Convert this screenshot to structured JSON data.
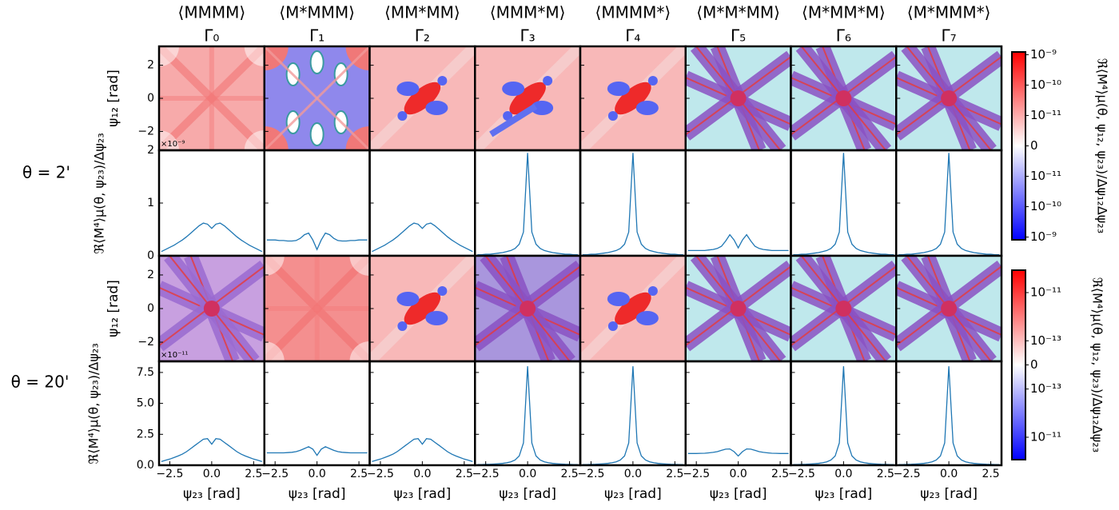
{
  "columns": [
    {
      "label": "⟨MMMM⟩",
      "gamma": "Γ₀"
    },
    {
      "label": "⟨M*MMM⟩",
      "gamma": "Γ₁"
    },
    {
      "label": "⟨MM*MM⟩",
      "gamma": "Γ₂"
    },
    {
      "label": "⟨MMM*M⟩",
      "gamma": "Γ₃"
    },
    {
      "label": "⟨MMMM*⟩",
      "gamma": "Γ₄"
    },
    {
      "label": "⟨M*M*MM⟩",
      "gamma": "Γ₅"
    },
    {
      "label": "⟨M*MM*M⟩",
      "gamma": "Γ₆"
    },
    {
      "label": "⟨M*MMM*⟩",
      "gamma": "Γ₇"
    }
  ],
  "chart_data": [
    {
      "type": "heatmap",
      "row_label": "θ = 2'",
      "ylabel": "ψ₁₂ [rad]",
      "ylim": [
        3.14,
        -3.14
      ],
      "yticks": [
        {
          "value": -2,
          "label": "−2"
        },
        0,
        2
      ],
      "multiplier": "×10⁻⁹",
      "colorbar": {
        "label": "ℜ⟨M⁴⟩μ(θ, ψ₁₂, ψ₂₃)/Δψ₁₂Δψ₂₃",
        "scale": "symlog",
        "linthresh": 1e-11,
        "clim": [
          -1.23e-09,
          1.23e-09
        ],
        "colors": [
          "#0000ff",
          "#ffffff",
          "#ff0000"
        ],
        "ticks": [
          {
            "value": 1e-09,
            "label": "10⁻⁹"
          },
          {
            "value": 1e-10,
            "label": "10⁻¹⁰"
          },
          {
            "value": 1e-11,
            "label": "10⁻¹¹"
          },
          0,
          {
            "value": -1e-11,
            "label": "10⁻¹¹"
          },
          {
            "value": -1e-10,
            "label": "10⁻¹⁰"
          },
          {
            "value": -1e-09,
            "label": "10⁻⁹"
          }
        ]
      }
    },
    {
      "type": "line",
      "ylabel": "ℜ⟨M⁴⟩μ(θ, ψ₂₃)/Δψ₂₃",
      "xlim": [
        -3.14,
        3.14
      ],
      "ylim": [
        0,
        2
      ],
      "yticks": [
        0,
        1,
        2
      ],
      "x": [
        -3,
        -2.75,
        -2.5,
        -2.25,
        -2,
        -1.75,
        -1.5,
        -1.25,
        -1,
        -0.75,
        -0.5,
        -0.25,
        0,
        0.25,
        0.5,
        0.75,
        1,
        1.25,
        1.5,
        1.75,
        2,
        2.25,
        2.5,
        2.75,
        3
      ],
      "series": [
        {
          "color": "#1f77b4",
          "values": [
            0.08,
            0.12,
            0.16,
            0.2,
            0.25,
            0.3,
            0.36,
            0.43,
            0.5,
            0.57,
            0.62,
            0.6,
            0.52,
            0.6,
            0.62,
            0.57,
            0.5,
            0.43,
            0.36,
            0.3,
            0.25,
            0.2,
            0.16,
            0.12,
            0.08
          ]
        },
        {
          "color": "#1f77b4",
          "values": [
            0.3,
            0.3,
            0.3,
            0.29,
            0.29,
            0.28,
            0.28,
            0.29,
            0.33,
            0.4,
            0.43,
            0.3,
            0.12,
            0.3,
            0.43,
            0.4,
            0.33,
            0.29,
            0.28,
            0.28,
            0.29,
            0.29,
            0.3,
            0.3,
            0.3
          ]
        },
        {
          "color": "#1f77b4",
          "values": [
            0.08,
            0.12,
            0.16,
            0.2,
            0.25,
            0.3,
            0.36,
            0.43,
            0.5,
            0.57,
            0.62,
            0.6,
            0.52,
            0.6,
            0.62,
            0.57,
            0.5,
            0.43,
            0.36,
            0.3,
            0.25,
            0.2,
            0.16,
            0.12,
            0.08
          ]
        },
        {
          "color": "#1f77b4",
          "values": [
            0.02,
            0.02,
            0.03,
            0.03,
            0.04,
            0.05,
            0.06,
            0.08,
            0.1,
            0.14,
            0.22,
            0.45,
            1.95,
            0.45,
            0.22,
            0.14,
            0.1,
            0.08,
            0.06,
            0.05,
            0.04,
            0.03,
            0.03,
            0.02,
            0.02
          ]
        },
        {
          "color": "#1f77b4",
          "values": [
            0.02,
            0.02,
            0.03,
            0.03,
            0.04,
            0.05,
            0.06,
            0.08,
            0.1,
            0.14,
            0.22,
            0.45,
            1.95,
            0.45,
            0.22,
            0.14,
            0.1,
            0.08,
            0.06,
            0.05,
            0.04,
            0.03,
            0.03,
            0.02,
            0.02
          ]
        },
        {
          "color": "#1f77b4",
          "values": [
            0.1,
            0.1,
            0.1,
            0.1,
            0.1,
            0.11,
            0.12,
            0.14,
            0.18,
            0.28,
            0.4,
            0.3,
            0.15,
            0.3,
            0.4,
            0.28,
            0.18,
            0.14,
            0.12,
            0.11,
            0.1,
            0.1,
            0.1,
            0.1,
            0.1
          ]
        },
        {
          "color": "#1f77b4",
          "values": [
            0.02,
            0.02,
            0.03,
            0.03,
            0.04,
            0.05,
            0.06,
            0.08,
            0.1,
            0.14,
            0.22,
            0.45,
            1.95,
            0.45,
            0.22,
            0.14,
            0.1,
            0.08,
            0.06,
            0.05,
            0.04,
            0.03,
            0.03,
            0.02,
            0.02
          ]
        },
        {
          "color": "#1f77b4",
          "values": [
            0.02,
            0.02,
            0.03,
            0.03,
            0.04,
            0.05,
            0.06,
            0.08,
            0.1,
            0.14,
            0.22,
            0.45,
            1.95,
            0.45,
            0.22,
            0.14,
            0.1,
            0.08,
            0.06,
            0.05,
            0.04,
            0.03,
            0.03,
            0.02,
            0.02
          ]
        }
      ]
    },
    {
      "type": "heatmap",
      "row_label": "θ = 20'",
      "ylabel": "ψ₁₂ [rad]",
      "ylim": [
        3.14,
        -3.14
      ],
      "yticks": [
        {
          "value": -2,
          "label": "−2"
        },
        0,
        2
      ],
      "multiplier": "×10⁻¹¹",
      "colorbar": {
        "label": "ℜ⟨M⁴⟩μ(θ, ψ₁₂, ψ₂₃)/Δψ₁₂Δψ₂₃",
        "scale": "symlog",
        "linthresh": 1e-13,
        "clim": [
          -8.5e-11,
          8.5e-11
        ],
        "colors": [
          "#0000ff",
          "#ffffff",
          "#ff0000"
        ],
        "ticks": [
          {
            "value": 1e-11,
            "label": "10⁻¹¹"
          },
          {
            "value": 1e-13,
            "label": "10⁻¹³"
          },
          0,
          {
            "value": -1e-13,
            "label": "10⁻¹³"
          },
          {
            "value": -1e-11,
            "label": "10⁻¹¹"
          }
        ]
      }
    },
    {
      "type": "line",
      "ylabel": "ℜ⟨M⁴⟩μ(θ, ψ₂₃)/Δψ₂₃",
      "xlabel": "ψ₂₃ [rad]",
      "xlim": [
        -3.14,
        3.14
      ],
      "xticks": [
        {
          "value": -2.5,
          "label": "−2.5"
        },
        {
          "value": 0,
          "label": "0.0"
        },
        2.5
      ],
      "ylim": [
        0,
        8.4
      ],
      "yticks": [
        {
          "value": 0,
          "label": "0.0"
        },
        2.5,
        {
          "value": 5,
          "label": "5.0"
        },
        7.5
      ],
      "x": [
        -3,
        -2.75,
        -2.5,
        -2.25,
        -2,
        -1.75,
        -1.5,
        -1.25,
        -1,
        -0.75,
        -0.5,
        -0.25,
        0,
        0.25,
        0.5,
        0.75,
        1,
        1.25,
        1.5,
        1.75,
        2,
        2.25,
        2.5,
        2.75,
        3
      ],
      "series": [
        {
          "color": "#1f77b4",
          "values": [
            0.3,
            0.4,
            0.5,
            0.62,
            0.75,
            0.9,
            1.1,
            1.35,
            1.6,
            1.85,
            2.1,
            2.15,
            1.7,
            2.15,
            2.1,
            1.85,
            1.6,
            1.35,
            1.1,
            0.9,
            0.75,
            0.62,
            0.5,
            0.4,
            0.3
          ]
        },
        {
          "color": "#1f77b4",
          "values": [
            1.0,
            1.0,
            1.0,
            1.0,
            1.0,
            1.02,
            1.05,
            1.1,
            1.2,
            1.35,
            1.5,
            1.3,
            0.8,
            1.3,
            1.5,
            1.35,
            1.2,
            1.1,
            1.05,
            1.02,
            1.0,
            1.0,
            1.0,
            1.0,
            1.0
          ]
        },
        {
          "color": "#1f77b4",
          "values": [
            0.3,
            0.4,
            0.5,
            0.62,
            0.75,
            0.9,
            1.1,
            1.35,
            1.6,
            1.85,
            2.1,
            2.15,
            1.7,
            2.15,
            2.1,
            1.85,
            1.6,
            1.35,
            1.1,
            0.9,
            0.75,
            0.62,
            0.5,
            0.4,
            0.3
          ]
        },
        {
          "color": "#1f77b4",
          "values": [
            0.05,
            0.06,
            0.07,
            0.08,
            0.1,
            0.12,
            0.15,
            0.2,
            0.28,
            0.42,
            0.75,
            1.8,
            8.0,
            1.8,
            0.75,
            0.42,
            0.28,
            0.2,
            0.15,
            0.12,
            0.1,
            0.08,
            0.07,
            0.06,
            0.05
          ]
        },
        {
          "color": "#1f77b4",
          "values": [
            0.05,
            0.06,
            0.07,
            0.08,
            0.1,
            0.12,
            0.15,
            0.2,
            0.28,
            0.42,
            0.75,
            1.8,
            8.0,
            1.8,
            0.75,
            0.42,
            0.28,
            0.2,
            0.15,
            0.12,
            0.1,
            0.08,
            0.07,
            0.06,
            0.05
          ]
        },
        {
          "color": "#1f77b4",
          "values": [
            0.95,
            0.95,
            0.95,
            0.96,
            0.97,
            1.0,
            1.04,
            1.1,
            1.2,
            1.3,
            1.32,
            1.1,
            0.75,
            1.1,
            1.32,
            1.3,
            1.2,
            1.1,
            1.04,
            1.0,
            0.97,
            0.96,
            0.95,
            0.95,
            0.95
          ]
        },
        {
          "color": "#1f77b4",
          "values": [
            0.05,
            0.06,
            0.07,
            0.08,
            0.1,
            0.12,
            0.15,
            0.2,
            0.28,
            0.42,
            0.75,
            1.8,
            8.0,
            1.8,
            0.75,
            0.42,
            0.28,
            0.2,
            0.15,
            0.12,
            0.1,
            0.08,
            0.07,
            0.06,
            0.05
          ]
        },
        {
          "color": "#1f77b4",
          "values": [
            0.05,
            0.06,
            0.07,
            0.08,
            0.1,
            0.12,
            0.15,
            0.2,
            0.28,
            0.42,
            0.75,
            1.8,
            8.0,
            1.8,
            0.75,
            0.42,
            0.28,
            0.2,
            0.15,
            0.12,
            0.1,
            0.08,
            0.07,
            0.06,
            0.05
          ]
        }
      ]
    }
  ]
}
